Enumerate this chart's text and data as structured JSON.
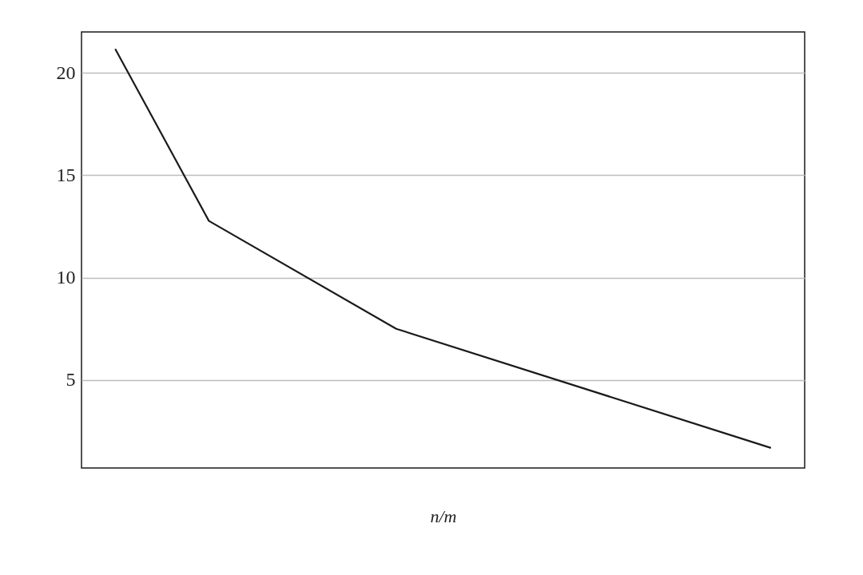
{
  "chart_data": {
    "type": "line",
    "xlabel": "n/m",
    "categories": [
      null,
      null,
      null,
      null,
      null,
      null,
      null,
      null
    ],
    "series": [
      {
        "color": "#1a1a1a",
        "values": [
          21.17,
          12.77,
          null,
          7.5,
          null,
          null,
          null,
          1.68
        ]
      }
    ],
    "ylim": [
      0.7,
      22.0
    ],
    "yticks": [
      5,
      10,
      15,
      20
    ],
    "grid": "y",
    "tick_labels": "y",
    "marker": "none",
    "line_style": "solid"
  }
}
